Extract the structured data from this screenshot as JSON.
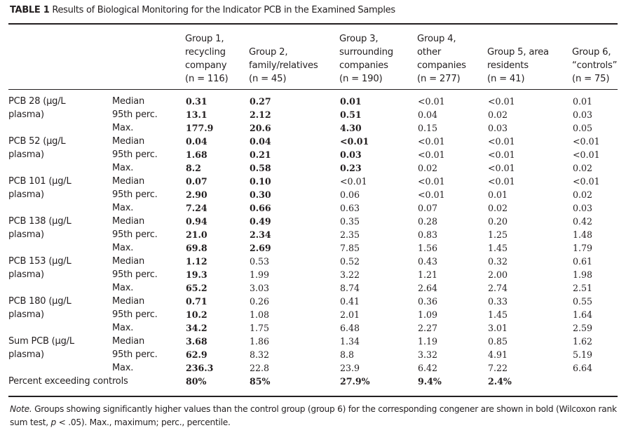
{
  "title": {
    "label": "TABLE 1",
    "text": "Results of Biological Monitoring for the Indicator PCB in the Examined Samples"
  },
  "columns": [
    {
      "lines": [
        "Group 1,",
        "recycling",
        "company",
        "(n = 116)"
      ]
    },
    {
      "lines": [
        "Group 2,",
        "family/relatives",
        "(n = 45)"
      ]
    },
    {
      "lines": [
        "Group 3,",
        "surrounding",
        "companies",
        "(n = 190)"
      ]
    },
    {
      "lines": [
        "Group 4,",
        "other",
        "companies",
        "(n = 277)"
      ]
    },
    {
      "lines": [
        "Group 5, area",
        "residents",
        "(n = 41)"
      ]
    },
    {
      "lines": [
        "Group 6,",
        "“controls”",
        "(n = 75)"
      ]
    }
  ],
  "rows": [
    {
      "label": "PCB 28 (μg/L",
      "stat": "Median",
      "values": [
        "0.31",
        "0.27",
        "0.01",
        "<0.01",
        "<0.01",
        "0.01"
      ],
      "bold": [
        true,
        true,
        true,
        false,
        false,
        false
      ]
    },
    {
      "label": "plasma)",
      "stat": "95th perc.",
      "values": [
        "13.1",
        "2.12",
        "0.51",
        "0.04",
        "0.02",
        "0.03"
      ],
      "bold": [
        true,
        true,
        true,
        false,
        false,
        false
      ]
    },
    {
      "label": "",
      "stat": "Max.",
      "values": [
        "177.9",
        "20.6",
        "4.30",
        "0.15",
        "0.03",
        "0.05"
      ],
      "bold": [
        true,
        true,
        true,
        false,
        false,
        false
      ]
    },
    {
      "label": "PCB 52 (μg/L",
      "stat": "Median",
      "values": [
        "0.04",
        "0.04",
        "<0.01",
        "<0.01",
        "<0.01",
        "<0.01"
      ],
      "bold": [
        true,
        true,
        true,
        false,
        false,
        false
      ]
    },
    {
      "label": "plasma)",
      "stat": "95th perc.",
      "values": [
        "1.68",
        "0.21",
        "0.03",
        "<0.01",
        "<0.01",
        "<0.01"
      ],
      "bold": [
        true,
        true,
        true,
        false,
        false,
        false
      ]
    },
    {
      "label": "",
      "stat": "Max.",
      "values": [
        "8.2",
        "0.58",
        "0.23",
        "0.02",
        "<0.01",
        "0.02"
      ],
      "bold": [
        true,
        true,
        true,
        false,
        false,
        false
      ]
    },
    {
      "label": "PCB 101 (μg/L",
      "stat": "Median",
      "values": [
        "0.07",
        "0.10",
        "<0.01",
        "<0.01",
        "<0.01",
        "<0.01"
      ],
      "bold": [
        true,
        true,
        false,
        false,
        false,
        false
      ]
    },
    {
      "label": "plasma)",
      "stat": "95th perc.",
      "values": [
        "2.90",
        "0.30",
        "0.06",
        "<0.01",
        "0.01",
        "0.02"
      ],
      "bold": [
        true,
        true,
        false,
        false,
        false,
        false
      ]
    },
    {
      "label": "",
      "stat": "Max.",
      "values": [
        "7.24",
        "0.66",
        "0.63",
        "0.07",
        "0.02",
        "0.03"
      ],
      "bold": [
        true,
        true,
        false,
        false,
        false,
        false
      ]
    },
    {
      "label": "PCB 138 (μg/L",
      "stat": "Median",
      "values": [
        "0.94",
        "0.49",
        "0.35",
        "0.28",
        "0.20",
        "0.42"
      ],
      "bold": [
        true,
        true,
        false,
        false,
        false,
        false
      ]
    },
    {
      "label": "plasma)",
      "stat": "95th perc.",
      "values": [
        "21.0",
        "2.34",
        "2.35",
        "0.83",
        "1.25",
        "1.48"
      ],
      "bold": [
        true,
        true,
        false,
        false,
        false,
        false
      ]
    },
    {
      "label": "",
      "stat": "Max.",
      "values": [
        "69.8",
        "2.69",
        "7.85",
        "1.56",
        "1.45",
        "1.79"
      ],
      "bold": [
        true,
        true,
        false,
        false,
        false,
        false
      ]
    },
    {
      "label": "PCB 153 (μg/L",
      "stat": "Median",
      "values": [
        "1.12",
        "0.53",
        "0.52",
        "0.43",
        "0.32",
        "0.61"
      ],
      "bold": [
        true,
        false,
        false,
        false,
        false,
        false
      ]
    },
    {
      "label": "plasma)",
      "stat": "95th perc.",
      "values": [
        "19.3",
        "1.99",
        "3.22",
        "1.21",
        "2.00",
        "1.98"
      ],
      "bold": [
        true,
        false,
        false,
        false,
        false,
        false
      ]
    },
    {
      "label": "",
      "stat": "Max.",
      "values": [
        "65.2",
        "3.03",
        "8.74",
        "2.64",
        "2.74",
        "2.51"
      ],
      "bold": [
        true,
        false,
        false,
        false,
        false,
        false
      ]
    },
    {
      "label": "PCB 180 (μg/L",
      "stat": "Median",
      "values": [
        "0.71",
        "0.26",
        "0.41",
        "0.36",
        "0.33",
        "0.55"
      ],
      "bold": [
        true,
        false,
        false,
        false,
        false,
        false
      ]
    },
    {
      "label": "plasma)",
      "stat": "95th perc.",
      "values": [
        "10.2",
        "1.08",
        "2.01",
        "1.09",
        "1.45",
        "1.64"
      ],
      "bold": [
        true,
        false,
        false,
        false,
        false,
        false
      ]
    },
    {
      "label": "",
      "stat": "Max.",
      "values": [
        "34.2",
        "1.75",
        "6.48",
        "2.27",
        "3.01",
        "2.59"
      ],
      "bold": [
        true,
        false,
        false,
        false,
        false,
        false
      ]
    },
    {
      "label": "Sum PCB (μg/L",
      "stat": "Median",
      "values": [
        "3.68",
        "1.86",
        "1.34",
        "1.19",
        "0.85",
        "1.62"
      ],
      "bold": [
        true,
        false,
        false,
        false,
        false,
        false
      ]
    },
    {
      "label": "plasma)",
      "stat": "95th perc.",
      "values": [
        "62.9",
        "8.32",
        "8.8",
        "3.32",
        "4.91",
        "5.19"
      ],
      "bold": [
        true,
        false,
        false,
        false,
        false,
        false
      ]
    },
    {
      "label": "",
      "stat": "Max.",
      "values": [
        "236.3",
        "22.8",
        "23.9",
        "6.42",
        "7.22",
        "6.64"
      ],
      "bold": [
        true,
        false,
        false,
        false,
        false,
        false
      ]
    }
  ],
  "percent_row": {
    "label": "Percent exceeding controls",
    "values": [
      "80%",
      "85%",
      "27.9%",
      "9.4%",
      "2.4%",
      ""
    ],
    "bold": [
      true,
      true,
      true,
      true,
      true,
      false
    ]
  },
  "note": {
    "lead": "Note.",
    "text_before_p": "Groups showing significantly higher values than the control group (group 6) for the corresponding congener are shown in bold (Wilcoxon rank sum test, ",
    "p": "p",
    "text_after_p": " < .05). Max., maximum; perc., percentile."
  }
}
